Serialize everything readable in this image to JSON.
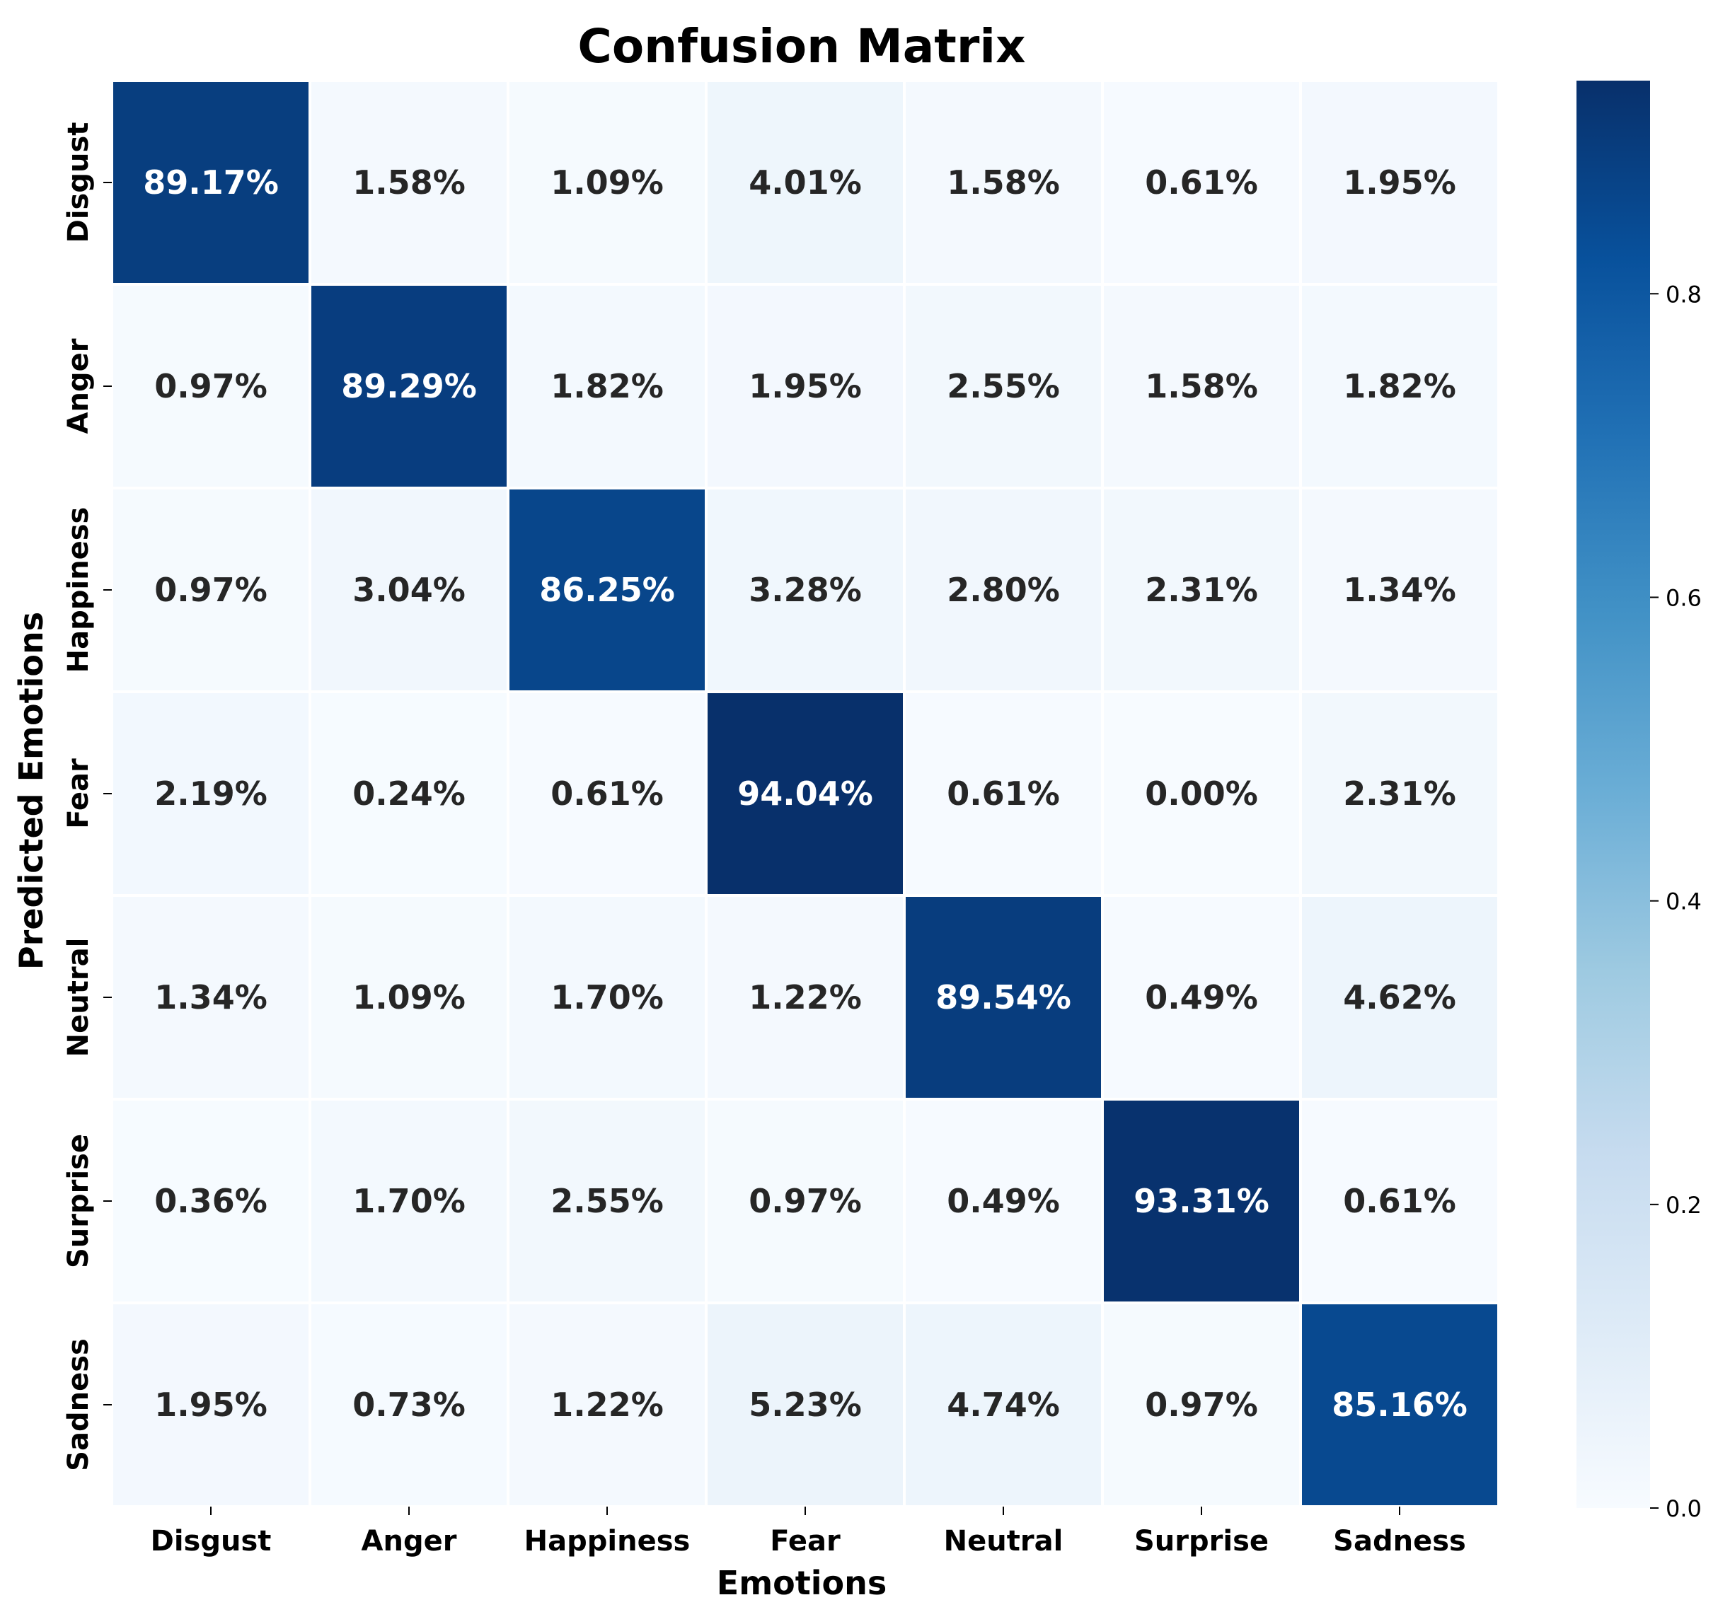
{
  "chart_data": {
    "type": "heatmap",
    "title": "Confusion Matrix",
    "xlabel": "Emotions",
    "ylabel": "Predicted Emotions",
    "x_categories": [
      "Disgust",
      "Anger",
      "Happiness",
      "Fear",
      "Neutral",
      "Surprise",
      "Sadness"
    ],
    "y_categories": [
      "Disgust",
      "Anger",
      "Happiness",
      "Fear",
      "Neutral",
      "Surprise",
      "Sadness"
    ],
    "values": [
      [
        89.17,
        1.58,
        1.09,
        4.01,
        1.58,
        0.61,
        1.95
      ],
      [
        0.97,
        89.29,
        1.82,
        1.95,
        2.55,
        1.58,
        1.82
      ],
      [
        0.97,
        3.04,
        86.25,
        3.28,
        2.8,
        2.31,
        1.34
      ],
      [
        2.19,
        0.24,
        0.61,
        94.04,
        0.61,
        0.0,
        2.31
      ],
      [
        1.34,
        1.09,
        1.7,
        1.22,
        89.54,
        0.49,
        4.62
      ],
      [
        0.36,
        1.7,
        2.55,
        0.97,
        0.49,
        93.31,
        0.61
      ],
      [
        1.95,
        0.73,
        1.22,
        5.23,
        4.74,
        0.97,
        85.16
      ]
    ],
    "value_suffix": "%",
    "colormap": "Blues",
    "colorbar": {
      "range": [
        0.0,
        0.9404
      ],
      "ticks": [
        0.0,
        0.2,
        0.4,
        0.6,
        0.8
      ],
      "tick_labels": [
        "0.0",
        "0.2",
        "0.4",
        "0.6",
        "0.8"
      ],
      "placement": "right"
    },
    "grid": false
  }
}
